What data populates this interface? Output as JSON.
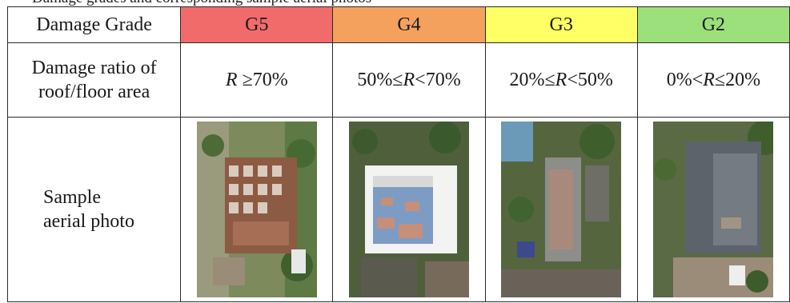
{
  "caption_fragment": "Damage grades and corresponding sample aerial photos",
  "table": {
    "row_header_label": "Damage Grade",
    "row_ratio_label_line1": "Damage ratio of",
    "row_ratio_label_line2": "roof/floor area",
    "row_photo_label_line1": "Sample",
    "row_photo_label_line2": "aerial photo",
    "grades": [
      {
        "name": "G5",
        "color": "#f26b6b",
        "ratio_pre": "",
        "ratio_var": "R",
        "ratio_post": " ≥70%",
        "photo_icon": "collapsed-building-aerial-photo"
      },
      {
        "name": "G4",
        "color": "#f5a15e",
        "ratio_pre": "50%≤",
        "ratio_var": "R",
        "ratio_post": "<70%",
        "photo_icon": "heavily-damaged-roof-aerial-photo"
      },
      {
        "name": "G3",
        "color": "#ffff66",
        "ratio_pre": "20%≤",
        "ratio_var": "R",
        "ratio_post": "<50%",
        "photo_icon": "moderately-damaged-roof-aerial-photo"
      },
      {
        "name": "G2",
        "color": "#9be07a",
        "ratio_pre": "0%<",
        "ratio_var": "R",
        "ratio_post": "≤20%",
        "photo_icon": "slightly-damaged-roof-aerial-photo"
      }
    ]
  }
}
